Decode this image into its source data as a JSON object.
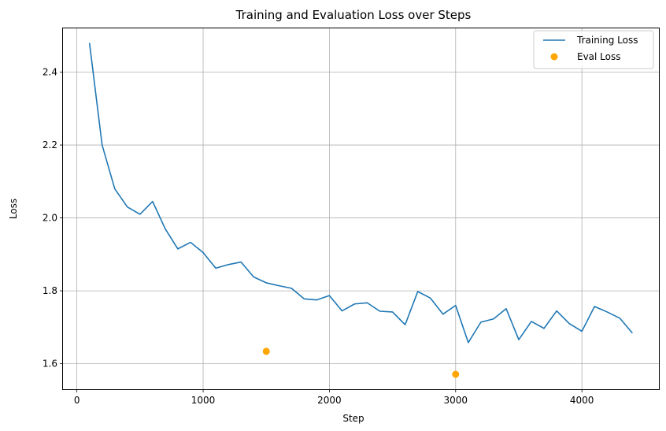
{
  "chart_data": {
    "type": "line",
    "title": "Training and Evaluation Loss over Steps",
    "xlabel": "Step",
    "ylabel": "Loss",
    "xlim": [
      -110,
      4610
    ],
    "ylim": [
      1.53,
      2.52
    ],
    "xticks": [
      0,
      1000,
      2000,
      3000,
      4000
    ],
    "yticks": [
      1.6,
      1.8,
      2.0,
      2.2,
      2.4
    ],
    "xtick_labels": [
      "0",
      "1000",
      "2000",
      "3000",
      "4000"
    ],
    "ytick_labels": [
      "1.6",
      "1.8",
      "2.0",
      "2.2",
      "2.4"
    ],
    "grid": true,
    "legend_position": "top-right",
    "series": [
      {
        "name": "Training Loss",
        "kind": "line",
        "color": "#1f77b4",
        "x": [
          100,
          200,
          300,
          400,
          500,
          600,
          700,
          800,
          900,
          1000,
          1100,
          1200,
          1300,
          1400,
          1500,
          1600,
          1700,
          1800,
          1900,
          2000,
          2100,
          2200,
          2300,
          2400,
          2500,
          2600,
          2700,
          2800,
          2900,
          3000,
          3100,
          3200,
          3300,
          3400,
          3500,
          3600,
          3700,
          3800,
          3900,
          4000,
          4100,
          4200,
          4300,
          4400
        ],
        "y": [
          2.48,
          2.2,
          2.08,
          2.03,
          2.01,
          2.045,
          1.97,
          1.915,
          1.933,
          1.905,
          1.862,
          1.872,
          1.879,
          1.838,
          1.822,
          1.814,
          1.807,
          1.778,
          1.775,
          1.787,
          1.745,
          1.764,
          1.767,
          1.744,
          1.742,
          1.707,
          1.798,
          1.78,
          1.736,
          1.76,
          1.658,
          1.714,
          1.723,
          1.751,
          1.666,
          1.716,
          1.697,
          1.745,
          1.71,
          1.689,
          1.757,
          1.742,
          1.725,
          1.684
        ]
      },
      {
        "name": "Eval Loss",
        "kind": "scatter",
        "color": "#ffa500",
        "x": [
          1500,
          3000
        ],
        "y": [
          1.634,
          1.571
        ]
      }
    ]
  }
}
